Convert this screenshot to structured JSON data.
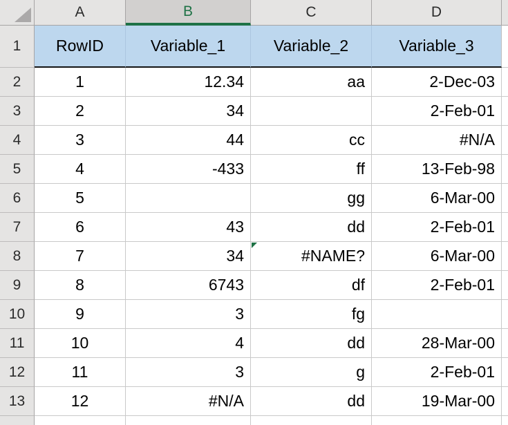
{
  "sheet": {
    "column_letters": [
      "A",
      "B",
      "C",
      "D"
    ],
    "selected_column": "B",
    "row_numbers": [
      "1",
      "2",
      "3",
      "4",
      "5",
      "6",
      "7",
      "8",
      "9",
      "10",
      "11",
      "12",
      "13"
    ],
    "header_row": [
      "RowID",
      "Variable_1",
      "Variable_2",
      "Variable_3"
    ],
    "data_rows": [
      [
        "1",
        "12.34",
        "aa",
        "2-Dec-03"
      ],
      [
        "2",
        "34",
        "",
        "2-Feb-01"
      ],
      [
        "3",
        "44",
        "cc",
        "#N/A"
      ],
      [
        "4",
        "-433",
        "ff",
        "13-Feb-98"
      ],
      [
        "5",
        "",
        "gg",
        "6-Mar-00"
      ],
      [
        "6",
        "43",
        "dd",
        "2-Feb-01"
      ],
      [
        "7",
        "34",
        "#NAME?",
        "6-Mar-00"
      ],
      [
        "8",
        "6743",
        "df",
        "2-Feb-01"
      ],
      [
        "9",
        "3",
        "fg",
        ""
      ],
      [
        "10",
        "4",
        "dd",
        "28-Mar-00"
      ],
      [
        "11",
        "3",
        "g",
        "2-Feb-01"
      ],
      [
        "12",
        "#N/A",
        "dd",
        "19-Mar-00"
      ]
    ],
    "error_indicator_cell": {
      "data_row_index": 6,
      "col_index": 2
    }
  },
  "colors": {
    "accent_green": "#1F7246",
    "selected_header_bg": "#D2D0CF",
    "header_bg": "#E5E4E3",
    "header_row_fill": "#BDD7EE",
    "header_row_bottom_border": "#141414",
    "gridline": "#C9C9C9",
    "header_border": "#A6A4A4",
    "error_indicator": "#1E7145",
    "select_all_triangle": "#ABA9A9"
  }
}
